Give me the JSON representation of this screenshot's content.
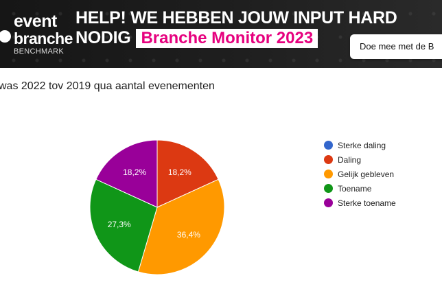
{
  "banner": {
    "logo": {
      "line1": "event",
      "line2": "branche",
      "line3": "BENCHMARK"
    },
    "headline_line1": "HELP! WE HEBBEN JOUW INPUT HARD",
    "headline_line2": "NODIG",
    "tag": "Branche Monitor 2023",
    "cta_label": "Doe mee met de B"
  },
  "question": "was 2022 tov 2019 qua aantal evenementen",
  "chart_data": {
    "type": "pie",
    "title": "",
    "categories": [
      "Sterke daling",
      "Daling",
      "Gelijk gebleven",
      "Toename",
      "Sterke toename"
    ],
    "values": [
      0,
      18.2,
      36.4,
      27.3,
      18.2
    ],
    "labels": [
      "",
      "18,2%",
      "36,4%",
      "27,3%",
      "18,2%"
    ],
    "colors": [
      "#3366cc",
      "#dc3912",
      "#ff9900",
      "#109618",
      "#990099"
    ],
    "legend_position": "right"
  }
}
